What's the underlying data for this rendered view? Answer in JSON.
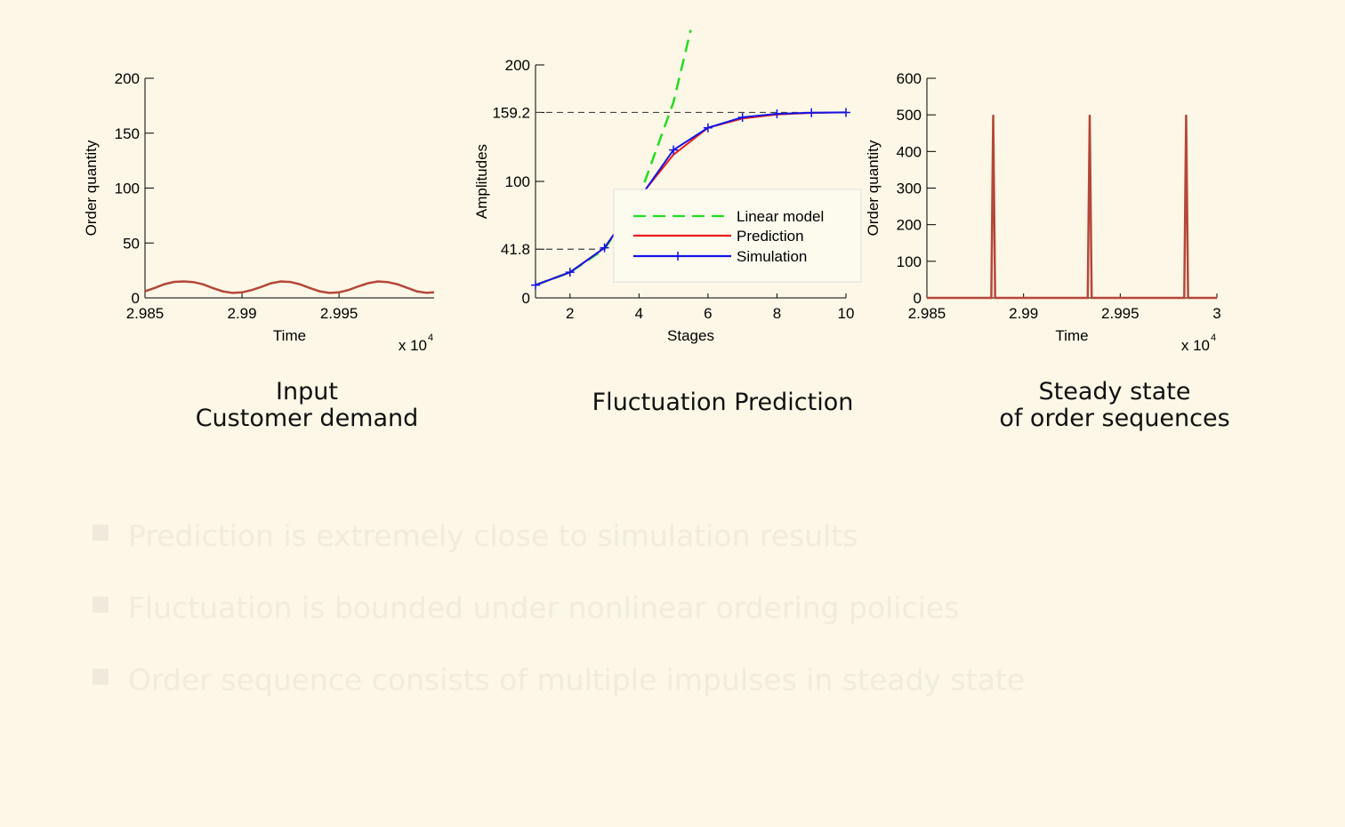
{
  "colors": {
    "background": "#fcf7e6",
    "demand_line": "#b5473a",
    "linear_model": "#22dd22",
    "prediction": "#ee1c1c",
    "simulation": "#1414e6",
    "bullet_text": "#f0ebdb"
  },
  "captions": {
    "input_line1": "Input",
    "input_line2": "Customer demand",
    "fluctuation": "Fluctuation Prediction",
    "steady_line1": "Steady state",
    "steady_line2": "of order sequences"
  },
  "bullets": [
    {
      "icon": "square-bullet-icon",
      "text": "Prediction is extremely close to simulation results"
    },
    {
      "icon": "square-bullet-icon",
      "text": "Fluctuation is bounded under nonlinear ordering policies"
    },
    {
      "icon": "square-bullet-icon",
      "text": "Order sequence consists of multiple impulses in steady state"
    }
  ],
  "chart_data": [
    {
      "type": "line",
      "xlabel": "Time",
      "ylabel": "Order quantity",
      "x_multiplier": "x 10",
      "x_multiplier_exp": "4",
      "xlim": [
        2.985,
        2.9999
      ],
      "ylim": [
        0,
        200
      ],
      "xticks": [
        2.985,
        2.99,
        2.995
      ],
      "xtick_labels": [
        "2.985",
        "2.99",
        "2.995"
      ],
      "yticks": [
        0,
        50,
        100,
        150,
        200
      ],
      "ytick_labels": [
        "0",
        "50",
        "100",
        "150",
        "200"
      ],
      "series": [
        {
          "x": [
            2.985,
            2.9855,
            2.986,
            2.9865,
            2.987,
            2.9875,
            2.988,
            2.9885,
            2.989,
            2.9895,
            2.99,
            2.9905,
            2.991,
            2.9915,
            2.992,
            2.9925,
            2.993,
            2.9935,
            2.994,
            2.9945,
            2.995,
            2.9955,
            2.996,
            2.9965,
            2.997,
            2.9975,
            2.998,
            2.9985,
            2.999,
            2.9995,
            2.9999
          ],
          "values": [
            6,
            9.1,
            12.5,
            14.6,
            15,
            14.4,
            12.3,
            9,
            6,
            4.5,
            5,
            7.1,
            10,
            13.4,
            15,
            14.5,
            12.3,
            9,
            6,
            4.5,
            5,
            7.2,
            10.5,
            13.4,
            15,
            14.4,
            12.5,
            9.2,
            6,
            4.6,
            5
          ]
        }
      ]
    },
    {
      "type": "line",
      "xlabel": "Stages",
      "ylabel": "Amplitudes",
      "xlim": [
        1,
        10
      ],
      "ylim": [
        0,
        200
      ],
      "xticks": [
        2,
        4,
        6,
        8,
        10
      ],
      "xtick_labels": [
        "2",
        "4",
        "6",
        "8",
        "10"
      ],
      "yticks": [
        0,
        41.8,
        100,
        159.2,
        200
      ],
      "ytick_labels": [
        "0",
        "41.8",
        "100",
        "159.2",
        "200"
      ],
      "reference_lines": [
        41.8,
        159.2
      ],
      "legend": "inside-right",
      "series": [
        {
          "name": "Linear model",
          "x": [
            1,
            2,
            3,
            4,
            5,
            5.5
          ],
          "values": [
            11,
            22,
            42,
            86,
            168,
            230
          ]
        },
        {
          "name": "Prediction",
          "x": [
            1,
            2,
            3,
            4,
            5,
            6,
            7,
            8,
            9,
            10
          ],
          "values": [
            11,
            22,
            43,
            86,
            123,
            146,
            154,
            157.5,
            158.8,
            159.2
          ]
        },
        {
          "name": "Simulation",
          "x": [
            1,
            2,
            3,
            4,
            5,
            6,
            7,
            8,
            9,
            10
          ],
          "values": [
            11,
            22,
            43,
            85,
            127,
            146,
            155,
            158,
            159,
            159.2
          ]
        }
      ]
    },
    {
      "type": "line",
      "xlabel": "Time",
      "ylabel": "Order quantity",
      "x_multiplier": "x 10",
      "x_multiplier_exp": "4",
      "xlim": [
        2.985,
        3.0
      ],
      "ylim": [
        0,
        600
      ],
      "xticks": [
        2.985,
        2.99,
        2.995,
        3.0
      ],
      "xtick_labels": [
        "2.985",
        "2.99",
        "2.995",
        "3"
      ],
      "yticks": [
        0,
        100,
        200,
        300,
        400,
        500,
        600
      ],
      "ytick_labels": [
        "0",
        "100",
        "200",
        "300",
        "400",
        "500",
        "600"
      ],
      "series": [
        {
          "x": [
            2.985,
            2.98833,
            2.98843,
            2.98853,
            2.99332,
            2.99342,
            2.99352,
            2.99831,
            2.99841,
            2.99851,
            3.0
          ],
          "values": [
            0,
            0,
            500,
            0,
            0,
            500,
            0,
            0,
            500,
            0,
            0
          ]
        }
      ]
    }
  ]
}
